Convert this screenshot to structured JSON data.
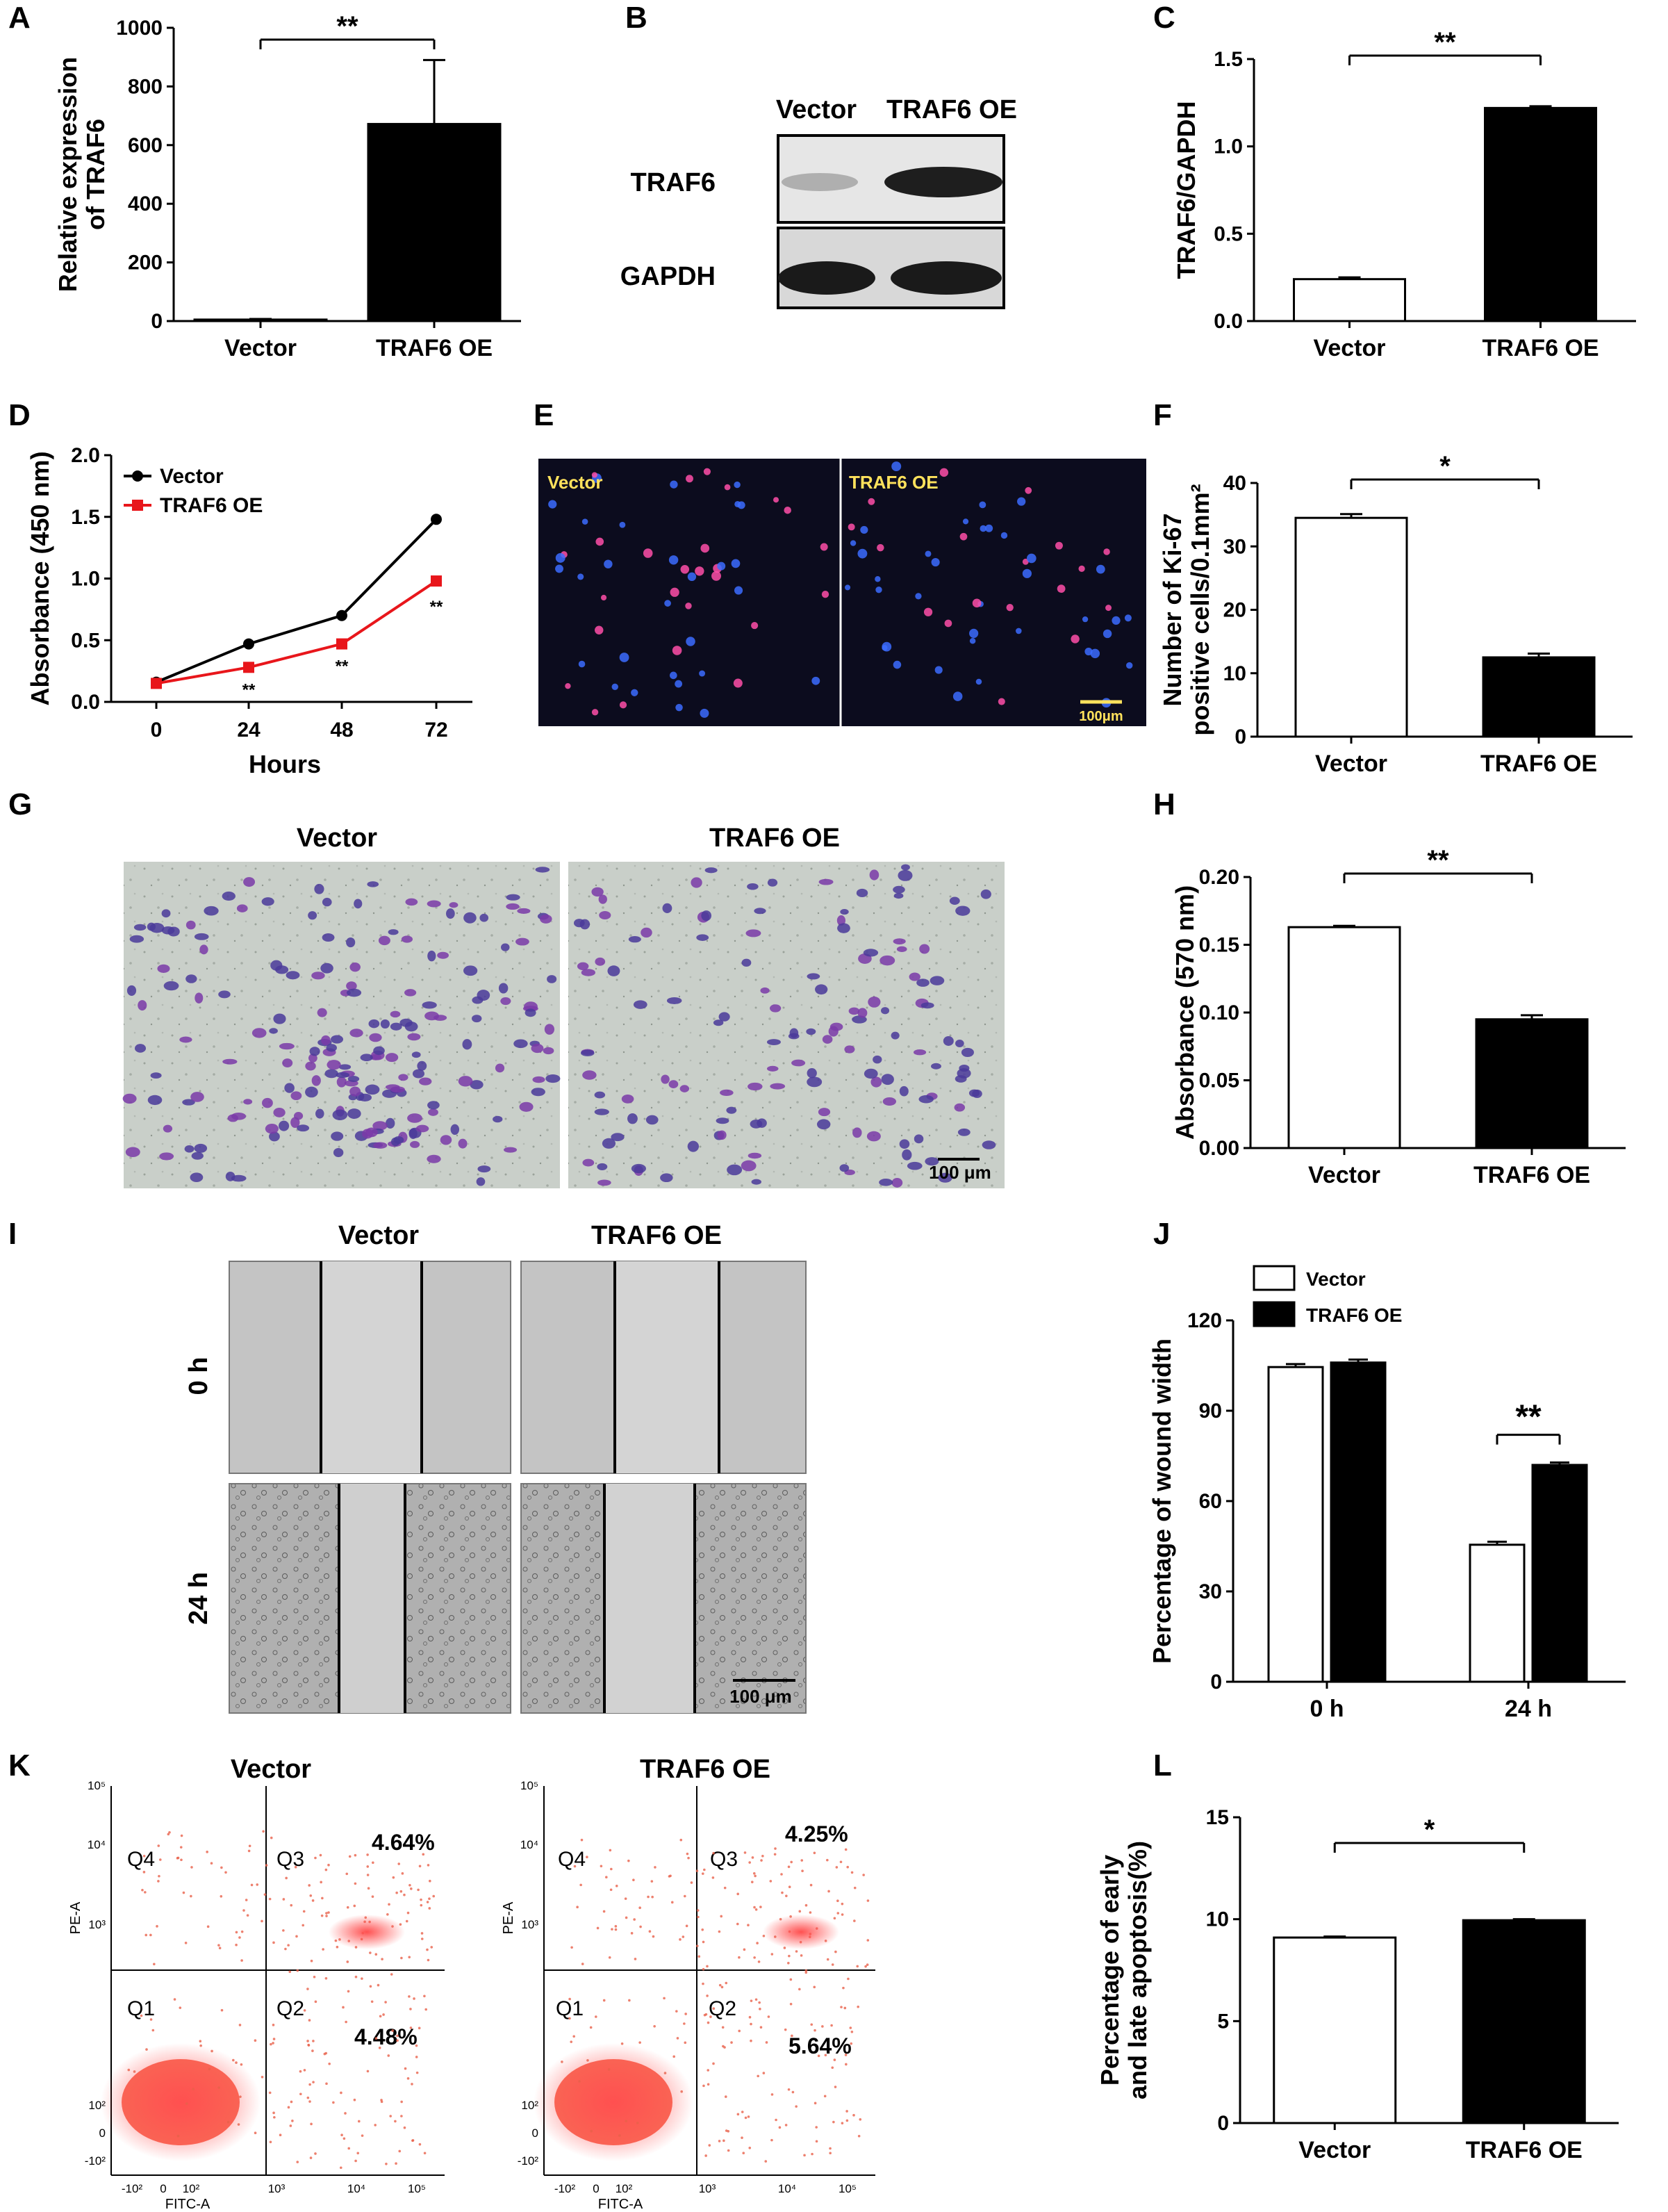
{
  "labels": {
    "A": "A",
    "B": "B",
    "C": "C",
    "D": "D",
    "E": "E",
    "F": "F",
    "G": "G",
    "H": "H",
    "I": "I",
    "J": "J",
    "K": "K",
    "L": "L"
  },
  "chart_data": [
    {
      "panel": "A",
      "type": "bar",
      "categories": [
        "Vector",
        "TRAF6 OE"
      ],
      "values": [
        5,
        672
      ],
      "errors": [
        2,
        218
      ],
      "ylabel": "Relative expression of TRAF6",
      "ylim": [
        0,
        1000
      ],
      "yticks": [
        "0",
        "200",
        "400",
        "600",
        "800",
        "1000"
      ],
      "significance": "**",
      "colors": [
        "#ffffff",
        "#000000"
      ]
    },
    {
      "panel": "C",
      "type": "bar",
      "categories": [
        "Vector",
        "TRAF6 OE"
      ],
      "values": [
        0.24,
        1.22
      ],
      "errors": [
        0.01,
        0.01
      ],
      "ylabel": "TRAF6/GAPDH",
      "ylim": [
        0,
        1.5
      ],
      "yticks": [
        "0.0",
        "0.5",
        "1.0",
        "1.5"
      ],
      "significance": "**",
      "colors": [
        "#ffffff",
        "#000000"
      ]
    },
    {
      "panel": "D",
      "type": "line",
      "x": [
        0,
        24,
        48,
        72
      ],
      "xticks": [
        "0",
        "24",
        "48",
        "72"
      ],
      "xlabel": "Hours",
      "ylabel": "Absorbance (450 nm)",
      "ylim": [
        0,
        2.0
      ],
      "yticks": [
        "0.0",
        "0.5",
        "1.0",
        "1.5",
        "2.0"
      ],
      "series": [
        {
          "name": "Vector",
          "values": [
            0.16,
            0.47,
            0.7,
            1.48
          ],
          "color": "#000000",
          "marker": "circle"
        },
        {
          "name": "TRAF6 OE",
          "values": [
            0.15,
            0.28,
            0.47,
            0.98
          ],
          "color": "#e8161b",
          "marker": "square"
        }
      ],
      "annotations": [
        "",
        "**",
        "**",
        "**"
      ],
      "legend": "top-left"
    },
    {
      "panel": "F",
      "type": "bar",
      "categories": [
        "Vector",
        "TRAF6 OE"
      ],
      "values": [
        34.5,
        12.5
      ],
      "errors": [
        0.6,
        0.6
      ],
      "ylabel_line1": "Number of Ki-67",
      "ylabel_line2": "positive cells/0.1mm²",
      "ylim": [
        0,
        40
      ],
      "yticks": [
        "0",
        "10",
        "20",
        "30",
        "40"
      ],
      "significance": "*",
      "colors": [
        "#ffffff",
        "#000000"
      ]
    },
    {
      "panel": "H",
      "type": "bar",
      "categories": [
        "Vector",
        "TRAF6 OE"
      ],
      "values": [
        0.163,
        0.095
      ],
      "errors": [
        0.001,
        0.003
      ],
      "ylabel": "Absorbance (570 nm)",
      "ylim": [
        0,
        0.2
      ],
      "yticks": [
        "0.00",
        "0.05",
        "0.10",
        "0.15",
        "0.20"
      ],
      "significance": "**",
      "colors": [
        "#ffffff",
        "#000000"
      ]
    },
    {
      "panel": "J",
      "type": "bar",
      "categories": [
        "0 h",
        "24 h"
      ],
      "series": [
        {
          "name": "Vector",
          "values": [
            104.5,
            45.5
          ],
          "errors": [
            1,
            1
          ],
          "color": "#ffffff"
        },
        {
          "name": "TRAF6 OE",
          "values": [
            106,
            72
          ],
          "errors": [
            1,
            0.8
          ],
          "color": "#000000"
        }
      ],
      "ylabel": "Percentage of wound width",
      "ylim": [
        0,
        120
      ],
      "yticks": [
        "0",
        "30",
        "60",
        "90",
        "120"
      ],
      "significance": "**",
      "legend": "top-left"
    },
    {
      "panel": "L",
      "type": "bar",
      "categories": [
        "Vector",
        "TRAF6 OE"
      ],
      "values": [
        9.1,
        9.95
      ],
      "errors": [
        0.05,
        0.05
      ],
      "ylabel_line1": "Percentage of early",
      "ylabel_line2": "and late apoptosis(%)",
      "ylim": [
        0,
        15
      ],
      "yticks": [
        "0",
        "5",
        "10",
        "15"
      ],
      "significance": "*",
      "colors": [
        "#ffffff",
        "#000000"
      ]
    }
  ],
  "panel_b": {
    "col_labels": [
      "Vector",
      "TRAF6 OE"
    ],
    "row_labels": [
      "TRAF6",
      "GAPDH"
    ]
  },
  "panel_e": {
    "labels": [
      "Vector",
      "TRAF6 OE"
    ],
    "scale": "100μm"
  },
  "panel_g": {
    "titles": [
      "Vector",
      "TRAF6 OE"
    ],
    "scale": "100 μm"
  },
  "panel_i": {
    "col_titles": [
      "Vector",
      "TRAF6 OE"
    ],
    "row_titles": [
      "0 h",
      "24 h"
    ],
    "scale": "100 μm"
  },
  "panel_k": {
    "plots": [
      {
        "title": "Vector",
        "q3": "4.64%",
        "q2": "4.48%"
      },
      {
        "title": "TRAF6 OE",
        "q3": "4.25%",
        "q2": "5.64%"
      }
    ],
    "quadrants": [
      "Q1",
      "Q2",
      "Q3",
      "Q4"
    ],
    "xlabel": "FITC-A",
    "ylabel": "PE-A",
    "xticks": [
      "-10²",
      "0",
      "10²",
      "10³",
      "10⁴",
      "10⁵"
    ],
    "yticks": [
      "-10²",
      "0",
      "10²",
      "10³",
      "10⁴",
      "10⁵"
    ]
  }
}
